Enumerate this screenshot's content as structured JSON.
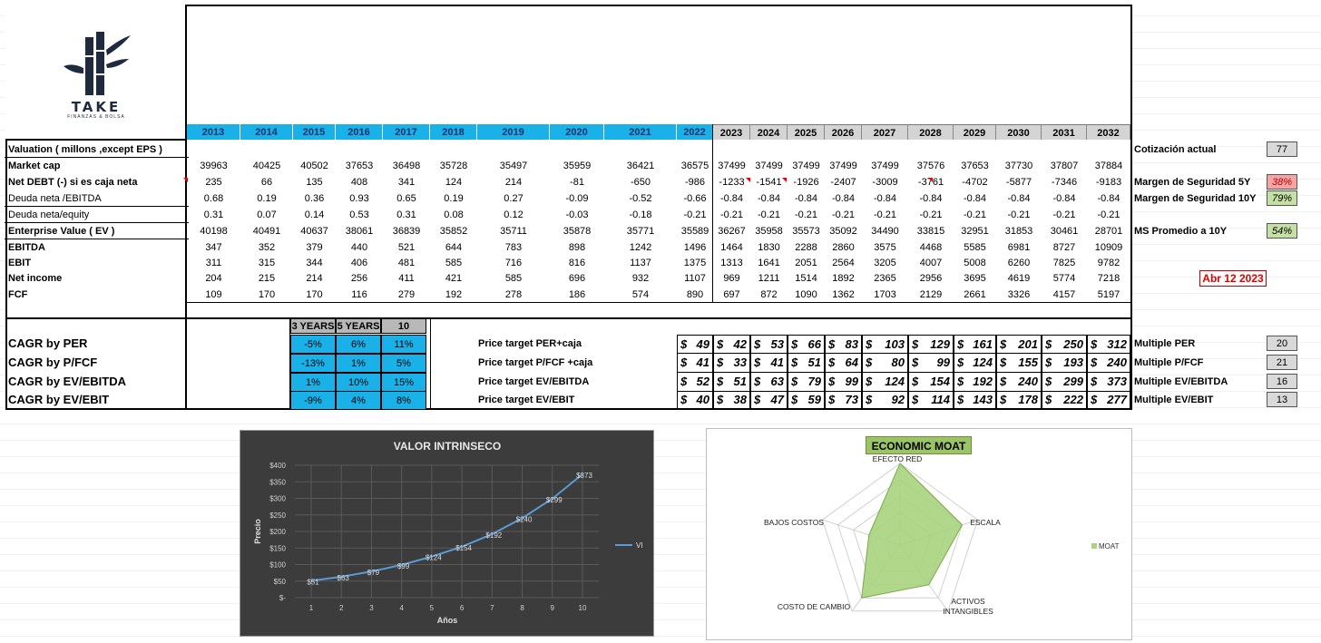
{
  "logo": {
    "name": "TAKE",
    "tagline": "FINANZAS & BOLSA"
  },
  "colors": {
    "year_blue": "#1ab0e8",
    "year_grey": "#d4d4d4",
    "negative_margin": "#f4a5a5",
    "positive_margin": "#c5e0a5",
    "chart_bg": "#3c3c3c",
    "moat_fill": "#9bc466",
    "line": "#5b9bd5"
  },
  "years_hist": [
    "2013",
    "2014",
    "2015",
    "2016",
    "2017",
    "2018",
    "2019",
    "2020",
    "2021",
    "2022"
  ],
  "years_proj": [
    "2023",
    "2024",
    "2025",
    "2026",
    "2027",
    "2028",
    "2029",
    "2030",
    "2031",
    "2032"
  ],
  "rows": [
    {
      "label": "Valuation  ( millons ,except EPS )",
      "bold": true,
      "values": []
    },
    {
      "label": "Market cap",
      "bold": true,
      "values": [
        "39963",
        "40425",
        "40502",
        "37653",
        "36498",
        "35728",
        "35497",
        "35959",
        "36421",
        "36575",
        "37499",
        "37499",
        "37499",
        "37499",
        "37499",
        "37576",
        "37653",
        "37730",
        "37807",
        "37884"
      ]
    },
    {
      "label": "Net DEBT  (-) si es caja neta",
      "bold": true,
      "values": [
        "235",
        "66",
        "135",
        "408",
        "341",
        "124",
        "214",
        "-81",
        "-650",
        "-986",
        "-1233",
        "-1541",
        "-1926",
        "-2407",
        "-3009",
        "-3761",
        "-4702",
        "-5877",
        "-7346",
        "-9183"
      ]
    },
    {
      "label": "Deuda neta /EBITDA",
      "bold": false,
      "values": [
        "0.68",
        "0.19",
        "0.36",
        "0.93",
        "0.65",
        "0.19",
        "0.27",
        "-0.09",
        "-0.52",
        "-0.66",
        "-0.84",
        "-0.84",
        "-0.84",
        "-0.84",
        "-0.84",
        "-0.84",
        "-0.84",
        "-0.84",
        "-0.84",
        "-0.84"
      ]
    },
    {
      "label": "Deuda neta/equity",
      "bold": false,
      "values": [
        "0.31",
        "0.07",
        "0.14",
        "0.53",
        "0.31",
        "0.08",
        "0.12",
        "-0.03",
        "-0.18",
        "-0.21",
        "-0.21",
        "-0.21",
        "-0.21",
        "-0.21",
        "-0.21",
        "-0.21",
        "-0.21",
        "-0.21",
        "-0.21",
        "-0.21"
      ]
    },
    {
      "label": "Enterprise Value ( EV )",
      "bold": true,
      "values": [
        "40198",
        "40491",
        "40637",
        "38061",
        "36839",
        "35852",
        "35711",
        "35878",
        "35771",
        "35589",
        "36267",
        "35958",
        "35573",
        "35092",
        "34490",
        "33815",
        "32951",
        "31853",
        "30461",
        "28701"
      ]
    },
    {
      "label": "EBITDA",
      "bold": true,
      "values": [
        "347",
        "352",
        "379",
        "440",
        "521",
        "644",
        "783",
        "898",
        "1242",
        "1496",
        "1464",
        "1830",
        "2288",
        "2860",
        "3575",
        "4468",
        "5585",
        "6981",
        "8727",
        "10909"
      ]
    },
    {
      "label": "EBIT",
      "bold": true,
      "values": [
        "311",
        "315",
        "344",
        "406",
        "481",
        "585",
        "716",
        "816",
        "1137",
        "1375",
        "1313",
        "1641",
        "2051",
        "2564",
        "3205",
        "4007",
        "5008",
        "6260",
        "7825",
        "9782"
      ]
    },
    {
      "label": "Net income",
      "bold": true,
      "values": [
        "204",
        "215",
        "214",
        "256",
        "411",
        "421",
        "585",
        "696",
        "932",
        "1107",
        "969",
        "1211",
        "1514",
        "1892",
        "2365",
        "2956",
        "3695",
        "4619",
        "5774",
        "7218"
      ]
    },
    {
      "label": "FCF",
      "bold": true,
      "values": [
        "109",
        "170",
        "170",
        "116",
        "279",
        "192",
        "278",
        "186",
        "574",
        "890",
        "697",
        "872",
        "1090",
        "1362",
        "1703",
        "2129",
        "2661",
        "3326",
        "4157",
        "5197"
      ]
    }
  ],
  "right_panel": {
    "cotizacion_label": "Cotización actual",
    "cotizacion_value": "77",
    "ms5_label": "Margen de Seguridad 5Y",
    "ms5_value": "38%",
    "ms10_label": "Margen de Seguridad 10Y",
    "ms10_value": "79%",
    "msavg_label": "MS Promedio a 10Y",
    "msavg_value": "54%",
    "date": "Abr 12 2023"
  },
  "cagr": {
    "headers": [
      "3 YEARS",
      "5 YEARS",
      "10 YEARS"
    ],
    "rows": [
      {
        "label": "CAGR  by PER",
        "values": [
          "-5%",
          "6%",
          "11%"
        ],
        "pt_label": "Price target  PER+caja",
        "targets": [
          "49",
          "42",
          "53",
          "66",
          "83",
          "103",
          "129",
          "161",
          "201",
          "250",
          "312"
        ],
        "multiple_label": "Multiple PER",
        "multiple": "20"
      },
      {
        "label": "CAGR  by  P/FCF",
        "values": [
          "-13%",
          "1%",
          "5%"
        ],
        "pt_label": "Price target  P/FCF +caja",
        "targets": [
          "41",
          "33",
          "41",
          "51",
          "64",
          "80",
          "99",
          "124",
          "155",
          "193",
          "240"
        ],
        "multiple_label": "Multiple P/FCF",
        "multiple": "21"
      },
      {
        "label": "CAGR  by EV/EBITDA",
        "values": [
          "1%",
          "10%",
          "15%"
        ],
        "pt_label": "Price target  EV/EBITDA",
        "targets": [
          "52",
          "51",
          "63",
          "79",
          "99",
          "124",
          "154",
          "192",
          "240",
          "299",
          "373"
        ],
        "multiple_label": "Multiple EV/EBITDA",
        "multiple": "16"
      },
      {
        "label": "CAGR  by EV/EBIT",
        "values": [
          "-9%",
          "4%",
          "8%"
        ],
        "pt_label": "Price target  EV/EBIT",
        "targets": [
          "40",
          "38",
          "47",
          "59",
          "73",
          "92",
          "114",
          "143",
          "178",
          "222",
          "277"
        ],
        "multiple_label": "Multiple EV/EBIT",
        "multiple": "13"
      }
    ],
    "currency": "$"
  },
  "chart_data": [
    {
      "type": "line",
      "title": "VALOR  INTRINSECO",
      "xlabel": "Años",
      "ylabel": "Precio",
      "x": [
        1,
        2,
        3,
        4,
        5,
        6,
        7,
        8,
        9,
        10
      ],
      "series": [
        {
          "name": "VI",
          "values": [
            51,
            63,
            79,
            99,
            124,
            154,
            192,
            240,
            299,
            373
          ]
        }
      ],
      "data_labels": [
        "$51",
        "$63",
        "$79",
        "$99",
        "$124",
        "$154",
        "$192",
        "$240",
        "$299",
        "$373"
      ],
      "yticks": [
        "$-",
        "$50",
        "$100",
        "$150",
        "$200",
        "$250",
        "$300",
        "$350",
        "$400"
      ],
      "ylim": [
        0,
        400
      ],
      "grid": true,
      "legend": "right"
    },
    {
      "type": "radar",
      "title": "ECONOMIC MOAT",
      "categories": [
        "EFECTO RED",
        "ESCALA",
        "ACTIVOS INTANGIBLES",
        "COSTO DE CAMBIO",
        "BAJOS COSTOS"
      ],
      "series": [
        {
          "name": "MOAT",
          "values": [
            5,
            4,
            3,
            4,
            2
          ]
        }
      ],
      "rmax": 5,
      "legend": "right"
    }
  ]
}
